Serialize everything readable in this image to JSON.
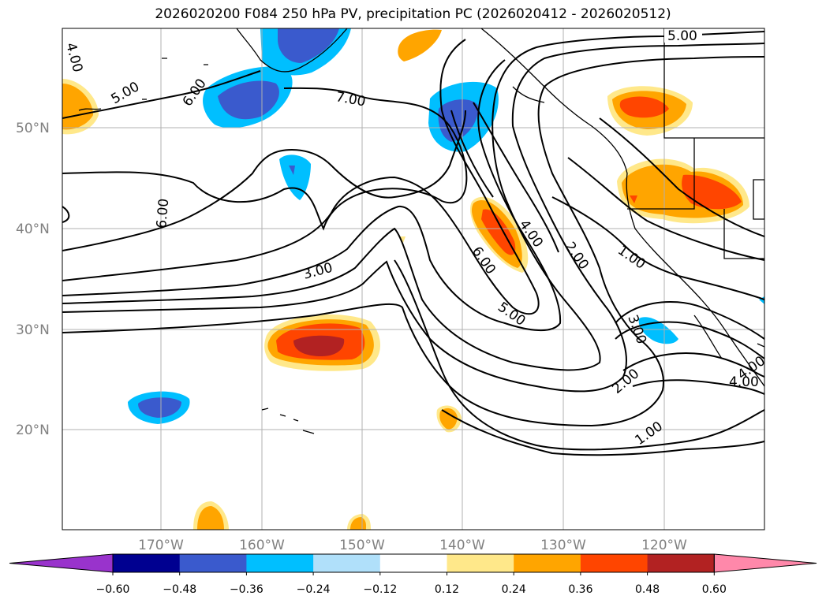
{
  "title": "2026020200 F084 250 hPa PV, precipitation PC (2026020412 - 2026020512)",
  "map": {
    "lat_ticks": [
      "50°N",
      "40°N",
      "30°N",
      "20°N"
    ],
    "lon_ticks": [
      "170°W",
      "160°W",
      "150°W",
      "140°W",
      "130°W",
      "120°W"
    ],
    "contour_labels": [
      "5.00",
      "4.00",
      "5.00",
      "6.00",
      "7.00",
      "6.00",
      "3.00",
      "6.00",
      "4.00",
      "2.00",
      "1.00",
      "5.00",
      "3.00",
      "2.00",
      "1.00",
      "4.00",
      "4.00"
    ]
  },
  "colorbar": {
    "ticks": [
      "−0.60",
      "−0.48",
      "−0.36",
      "−0.24",
      "−0.12",
      "0.12",
      "0.24",
      "0.36",
      "0.48",
      "0.60"
    ],
    "colors": [
      "#9933cc",
      "#000090",
      "#3a5acd",
      "#00bfff",
      "#b0e0fa",
      "#ffffff",
      "#ffe88a",
      "#ffa500",
      "#ff4500",
      "#b22222",
      "#ff88aa"
    ]
  }
}
